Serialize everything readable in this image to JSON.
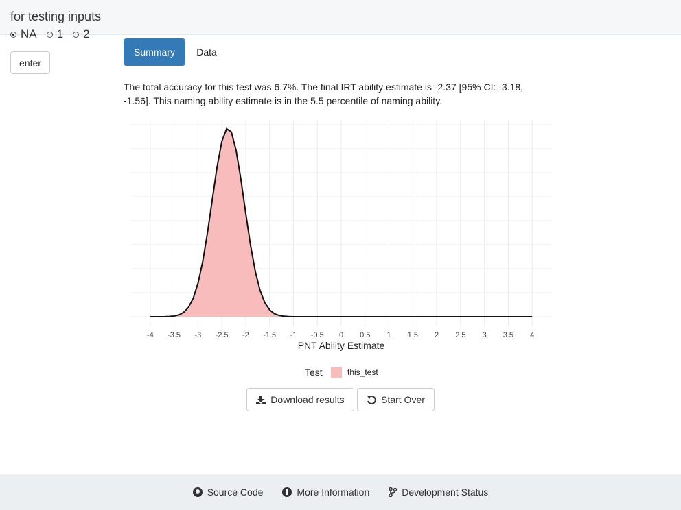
{
  "sidebar": {
    "title": "for testing inputs",
    "radio_options": [
      "NA",
      "1",
      "2"
    ],
    "selected": 0,
    "enter_button": "enter"
  },
  "tabs": [
    "Summary",
    "Data"
  ],
  "active_tab": 0,
  "summary_text": "The total accuracy for this test was 6.7%. The final IRT ability estimate is -2.37 [95% CI: -3.18, -1.56]. This naming ability estimate is in the 5.5 percentile of naming ability.",
  "chart_data": {
    "type": "area",
    "xlabel": "PNT Ability Estimate",
    "legend_title": "Test",
    "x": [
      -4,
      -3.9,
      -3.8,
      -3.7,
      -3.6,
      -3.5,
      -3.4,
      -3.3,
      -3.2,
      -3.1,
      -3,
      -2.9,
      -2.8,
      -2.7,
      -2.6,
      -2.5,
      -2.4,
      -2.3,
      -2.2,
      -2.1,
      -2,
      -1.9,
      -1.8,
      -1.7,
      -1.6,
      -1.5,
      -1.4,
      -1.3,
      -1.2,
      -1.1,
      -1,
      4
    ],
    "series": [
      {
        "name": "this_test",
        "color": "#f8bcbc",
        "line_color": "#111111",
        "values": [
          0,
          4e-05,
          0.0002,
          0.0005,
          0.0016,
          0.0044,
          0.011,
          0.027,
          0.058,
          0.115,
          0.208,
          0.345,
          0.526,
          0.732,
          0.936,
          1.096,
          1.175,
          1.155,
          1.039,
          0.858,
          0.648,
          0.449,
          0.285,
          0.165,
          0.088,
          0.043,
          0.019,
          0.008,
          0.003,
          0.001,
          0,
          0
        ]
      }
    ],
    "xlim": [
      -4.4,
      4.4
    ],
    "xticks": [
      -4,
      -3.5,
      -3,
      -2.5,
      -2,
      -1.5,
      -1,
      -0.5,
      0,
      0.5,
      1,
      1.5,
      2,
      2.5,
      3,
      3.5,
      4
    ],
    "ylim": [
      -0.06,
      1.23
    ],
    "yticks": [
      0,
      0.15,
      0.3,
      0.45,
      0.6,
      0.75,
      0.9,
      1.05,
      1.2
    ],
    "grid": true
  },
  "buttons": [
    "Download results",
    "Start Over"
  ],
  "footer": [
    "Source Code",
    "More Information",
    "Development Status"
  ]
}
